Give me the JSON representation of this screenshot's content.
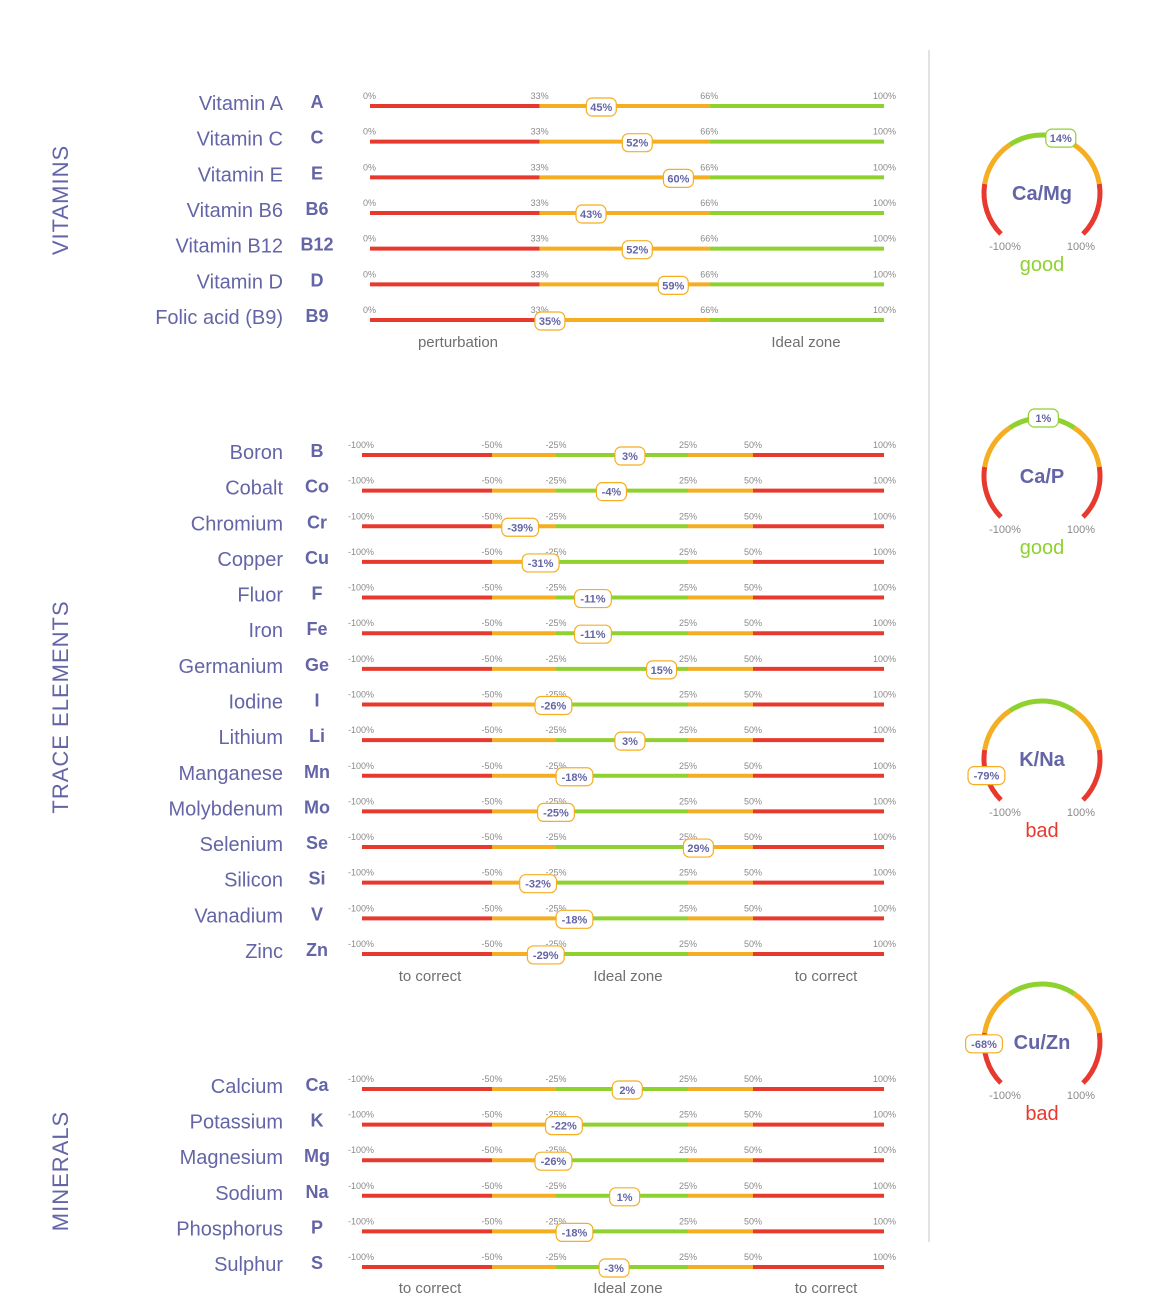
{
  "colors": {
    "red": "#e8392e",
    "orange": "#f5ae22",
    "green": "#8fd12f",
    "label": "#6465a6",
    "divider": "#d9d9d9",
    "good": "#8fd12f",
    "bad": "#e8392e"
  },
  "chart_data": [
    {
      "type": "bar",
      "section": "VITAMINS",
      "scale": "positive",
      "ticks": [
        "0%",
        "33%",
        "66%",
        "100%"
      ],
      "tick_values": [
        0,
        33,
        66,
        100
      ],
      "footer": {
        "left": "perturbation",
        "right": "Ideal zone"
      },
      "rows": [
        {
          "name": "Vitamin A",
          "symbol": "A",
          "value": 45,
          "label": "45%"
        },
        {
          "name": "Vitamin C",
          "symbol": "C",
          "value": 52,
          "label": "52%"
        },
        {
          "name": "Vitamin E",
          "symbol": "E",
          "value": 60,
          "label": "60%"
        },
        {
          "name": "Vitamin B6",
          "symbol": "B6",
          "value": 43,
          "label": "43%"
        },
        {
          "name": "Vitamin B12",
          "symbol": "B12",
          "value": 52,
          "label": "52%"
        },
        {
          "name": "Vitamin D",
          "symbol": "D",
          "value": 59,
          "label": "59%"
        },
        {
          "name": "Folic acid (B9)",
          "symbol": "B9",
          "value": 35,
          "label": "35%"
        }
      ]
    },
    {
      "type": "bar",
      "section": "TRACE ELEMENTS",
      "scale": "symmetric",
      "ticks": [
        "-100%",
        "-50%",
        "-25%",
        "25%",
        "50%",
        "100%"
      ],
      "tick_values": [
        -100,
        -50,
        -25,
        25,
        50,
        100
      ],
      "footer": {
        "left": "to correct",
        "center": "Ideal zone",
        "right": "to correct"
      },
      "rows": [
        {
          "name": "Boron",
          "symbol": "B",
          "value": 3,
          "label": "3%"
        },
        {
          "name": "Cobalt",
          "symbol": "Co",
          "value": -4,
          "label": "-4%"
        },
        {
          "name": "Chromium",
          "symbol": "Cr",
          "value": -39,
          "label": "-39%"
        },
        {
          "name": "Copper",
          "symbol": "Cu",
          "value": -31,
          "label": "-31%"
        },
        {
          "name": "Fluor",
          "symbol": "F",
          "value": -11,
          "label": "-11%"
        },
        {
          "name": "Iron",
          "symbol": "Fe",
          "value": -11,
          "label": "-11%"
        },
        {
          "name": "Germanium",
          "symbol": "Ge",
          "value": 15,
          "label": "15%"
        },
        {
          "name": "Iodine",
          "symbol": "I",
          "value": -26,
          "label": "-26%"
        },
        {
          "name": "Lithium",
          "symbol": "Li",
          "value": 3,
          "label": "3%"
        },
        {
          "name": "Manganese",
          "symbol": "Mn",
          "value": -18,
          "label": "-18%"
        },
        {
          "name": "Molybdenum",
          "symbol": "Mo",
          "value": -25,
          "label": "-25%"
        },
        {
          "name": "Selenium",
          "symbol": "Se",
          "value": 29,
          "label": "29%"
        },
        {
          "name": "Silicon",
          "symbol": "Si",
          "value": -32,
          "label": "-32%"
        },
        {
          "name": "Vanadium",
          "symbol": "V",
          "value": -18,
          "label": "-18%"
        },
        {
          "name": "Zinc",
          "symbol": "Zn",
          "value": -29,
          "label": "-29%"
        }
      ]
    },
    {
      "type": "bar",
      "section": "MINERALS",
      "scale": "symmetric",
      "ticks": [
        "-100%",
        "-50%",
        "-25%",
        "25%",
        "50%",
        "100%"
      ],
      "tick_values": [
        -100,
        -50,
        -25,
        25,
        50,
        100
      ],
      "footer": {
        "left": "to correct",
        "center": "Ideal zone",
        "right": "to correct"
      },
      "rows": [
        {
          "name": "Calcium",
          "symbol": "Ca",
          "value": 2,
          "label": "2%"
        },
        {
          "name": "Potassium",
          "symbol": "K",
          "value": -22,
          "label": "-22%"
        },
        {
          "name": "Magnesium",
          "symbol": "Mg",
          "value": -26,
          "label": "-26%"
        },
        {
          "name": "Sodium",
          "symbol": "Na",
          "value": 1,
          "label": "1%"
        },
        {
          "name": "Phosphorus",
          "symbol": "P",
          "value": -18,
          "label": "-18%"
        },
        {
          "name": "Sulphur",
          "symbol": "S",
          "value": -3,
          "label": "-3%"
        }
      ]
    },
    {
      "type": "gauge",
      "ratios": [
        {
          "title": "Ca/Mg",
          "value": 14,
          "label": "14%",
          "min_label": "-100%",
          "max_label": "100%",
          "status": "good"
        },
        {
          "title": "Ca/P",
          "value": 1,
          "label": "1%",
          "min_label": "-100%",
          "max_label": "100%",
          "status": "good"
        },
        {
          "title": "K/Na",
          "value": -79,
          "label": "-79%",
          "min_label": "-100%",
          "max_label": "100%",
          "status": "bad"
        },
        {
          "title": "Cu/Zn",
          "value": -68,
          "label": "-68%",
          "min_label": "-100%",
          "max_label": "100%",
          "status": "bad"
        }
      ]
    }
  ]
}
